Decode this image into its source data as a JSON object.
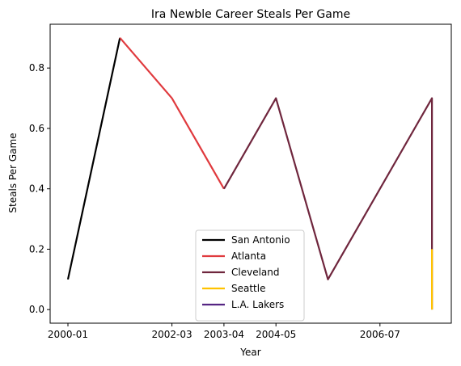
{
  "chart_data": {
    "type": "line",
    "title": "Ira Newble Career Steals Per Game",
    "xlabel": "Year",
    "ylabel": "Steals Per Game",
    "x_categories": [
      "2000-01",
      "2001-02",
      "2002-03",
      "2003-04",
      "2004-05",
      "2005-06",
      "2006-07",
      "2007-08"
    ],
    "x_ticks": [
      "2000-01",
      "2002-03",
      "2003-04",
      "2004-05",
      "2006-07"
    ],
    "y_ticks": [
      "0.0",
      "0.2",
      "0.4",
      "0.6",
      "0.8"
    ],
    "ylim": [
      -0.045,
      0.945
    ],
    "grid": false,
    "legend_position": "lower center",
    "series": [
      {
        "name": "San Antonio",
        "color": "#000000",
        "points": [
          [
            "2000-01",
            0.1
          ],
          [
            "2001-02",
            0.9
          ]
        ]
      },
      {
        "name": "Atlanta",
        "color": "#E03A3E",
        "points": [
          [
            "2001-02",
            0.9
          ],
          [
            "2002-03",
            0.7
          ],
          [
            "2003-04",
            0.4
          ]
        ]
      },
      {
        "name": "Cleveland",
        "color": "#6F263D",
        "points": [
          [
            "2003-04",
            0.4
          ],
          [
            "2004-05",
            0.7
          ],
          [
            "2005-06",
            0.1
          ],
          [
            "2007-08",
            0.7
          ],
          [
            "2007-08",
            0.0
          ]
        ]
      },
      {
        "name": "Seattle",
        "color": "#FFC200",
        "points": [
          [
            "2007-08",
            0.0
          ],
          [
            "2007-08",
            0.2
          ]
        ]
      },
      {
        "name": "L.A. Lakers",
        "color": "#552583",
        "points": []
      }
    ]
  }
}
